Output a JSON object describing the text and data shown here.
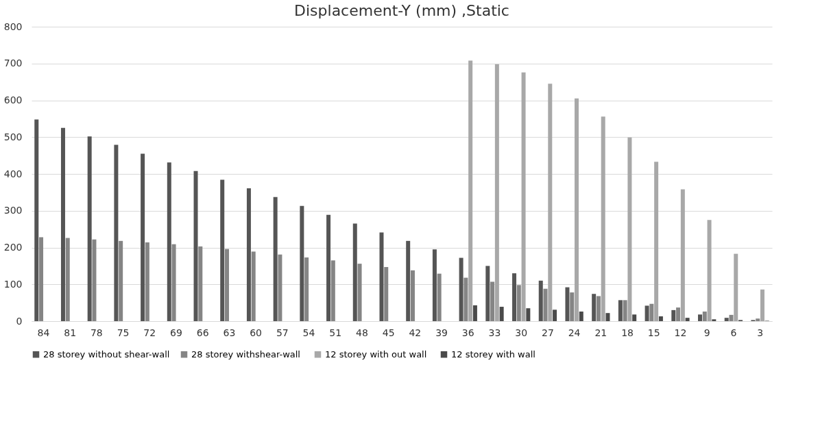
{
  "chart_data": {
    "type": "bar",
    "title": "Displacement-Y (mm) ,Static",
    "categories": [
      "84",
      "81",
      "78",
      "75",
      "72",
      "69",
      "66",
      "63",
      "60",
      "57",
      "54",
      "51",
      "48",
      "45",
      "42",
      "39",
      "36",
      "33",
      "30",
      "27",
      "24",
      "21",
      "18",
      "15",
      "12",
      "9",
      "6",
      "3"
    ],
    "series": [
      {
        "name": "28 storey without shear-wall",
        "color": "#555555",
        "values": [
          548,
          525,
          502,
          479,
          455,
          431,
          408,
          384,
          361,
          337,
          313,
          289,
          265,
          241,
          218,
          195,
          172,
          150,
          130,
          110,
          92,
          74,
          57,
          42,
          30,
          18,
          9,
          3
        ]
      },
      {
        "name": "28  storey withshear-wall",
        "color": "#858585",
        "values": [
          228,
          226,
          222,
          218,
          214,
          209,
          203,
          196,
          189,
          181,
          173,
          165,
          156,
          147,
          138,
          129,
          118,
          107,
          98,
          88,
          78,
          68,
          57,
          47,
          37,
          26,
          17,
          7
        ]
      },
      {
        "name": "12 storey  with out wall",
        "color": "#a8a8a8",
        "values": [
          null,
          null,
          null,
          null,
          null,
          null,
          null,
          null,
          null,
          null,
          null,
          null,
          null,
          null,
          null,
          null,
          708,
          698,
          676,
          645,
          605,
          556,
          499,
          433,
          358,
          275,
          183,
          86
        ]
      },
      {
        "name": "12 storey with wall",
        "color": "#4a4a4a",
        "values": [
          null,
          null,
          null,
          null,
          null,
          null,
          null,
          null,
          null,
          null,
          null,
          null,
          null,
          null,
          null,
          null,
          43,
          39,
          35,
          31,
          26,
          22,
          18,
          13,
          9,
          5,
          3,
          1
        ]
      }
    ],
    "ylim": [
      0,
      800
    ],
    "yticks": [
      0,
      100,
      200,
      300,
      400,
      500,
      600,
      700,
      800
    ],
    "grid": "y",
    "legend": "bottom"
  }
}
